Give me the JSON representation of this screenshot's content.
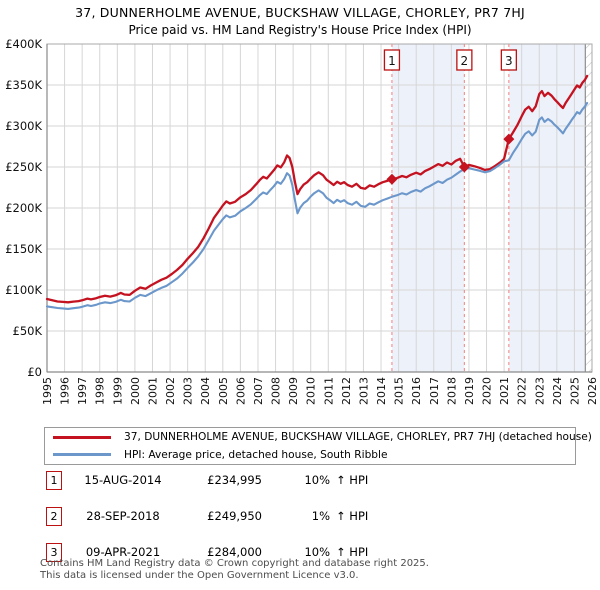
{
  "title": "37, DUNNERHOLME AVENUE, BUCKSHAW VILLAGE, CHORLEY, PR7 7HJ",
  "subtitle": "Price paid vs. HM Land Registry's House Price Index (HPI)",
  "chart_data": {
    "type": "line",
    "title": "37, DUNNERHOLME AVENUE, BUCKSHAW VILLAGE, CHORLEY, PR7 7HJ",
    "subtitle": "Price paid vs. HM Land Registry's House Price Index (HPI)",
    "xlabel": "",
    "ylabel": "",
    "xlim": [
      1995,
      2026
    ],
    "ylim": [
      0,
      400000
    ],
    "grid": true,
    "legend_position": "bottom",
    "x_ticks": [
      "1995",
      "1996",
      "1997",
      "1998",
      "1999",
      "2000",
      "2001",
      "2002",
      "2003",
      "2004",
      "2005",
      "2006",
      "2007",
      "2008",
      "2009",
      "2010",
      "2011",
      "2012",
      "2013",
      "2014",
      "2015",
      "2016",
      "2017",
      "2018",
      "2019",
      "2020",
      "2021",
      "2022",
      "2023",
      "2024",
      "2025",
      "2026"
    ],
    "y_ticks": [
      "£0",
      "£50K",
      "£100K",
      "£150K",
      "£200K",
      "£250K",
      "£300K",
      "£350K",
      "£400K"
    ],
    "y_tick_step": 50000,
    "colors": {
      "property_line": "#c41220",
      "hpi_line": "#6b97cb",
      "marker_dash": "#f58a8a",
      "band_fill": "#edf1fa",
      "grid": "#d6d6d6",
      "border": "#a8a8a8",
      "axis": "#8a8a8a",
      "hatch_stroke": "#c2c2c2",
      "annotation_border": "#bb1111"
    },
    "shaded_bands": [
      [
        2014.62,
        2018.74
      ],
      [
        2021.27,
        2025.62
      ]
    ],
    "hatch_band": [
      2025.62,
      2026
    ],
    "sale_markers": [
      {
        "label": "1",
        "year": 2014.62,
        "price": 234995
      },
      {
        "label": "2",
        "year": 2018.74,
        "price": 249950
      },
      {
        "label": "3",
        "year": 2021.27,
        "price": 284000
      }
    ],
    "series": [
      {
        "name": "37, DUNNERHOLME AVENUE, BUCKSHAW VILLAGE, CHORLEY, PR7 7HJ (detached house)",
        "color": "#c41220",
        "points": [
          [
            1995.0,
            89000
          ],
          [
            1995.3,
            87500
          ],
          [
            1995.6,
            86000
          ],
          [
            1995.9,
            85500
          ],
          [
            1996.2,
            85000
          ],
          [
            1996.5,
            85800
          ],
          [
            1996.8,
            86500
          ],
          [
            1997.0,
            87500
          ],
          [
            1997.3,
            89500
          ],
          [
            1997.5,
            88500
          ],
          [
            1997.8,
            90000
          ],
          [
            1998.0,
            91500
          ],
          [
            1998.3,
            93000
          ],
          [
            1998.6,
            92000
          ],
          [
            1998.9,
            93500
          ],
          [
            1999.2,
            96500
          ],
          [
            1999.4,
            94500
          ],
          [
            1999.7,
            94000
          ],
          [
            2000.0,
            99000
          ],
          [
            2000.3,
            103000
          ],
          [
            2000.6,
            101500
          ],
          [
            2000.9,
            105500
          ],
          [
            2001.2,
            109000
          ],
          [
            2001.5,
            112500
          ],
          [
            2001.8,
            115000
          ],
          [
            2002.1,
            119500
          ],
          [
            2002.4,
            124500
          ],
          [
            2002.7,
            130500
          ],
          [
            2003.0,
            138000
          ],
          [
            2003.3,
            145000
          ],
          [
            2003.6,
            152500
          ],
          [
            2003.9,
            163000
          ],
          [
            2004.2,
            175000
          ],
          [
            2004.5,
            188000
          ],
          [
            2004.8,
            197000
          ],
          [
            2005.0,
            203000
          ],
          [
            2005.2,
            208000
          ],
          [
            2005.4,
            205500
          ],
          [
            2005.7,
            207500
          ],
          [
            2006.0,
            213000
          ],
          [
            2006.3,
            217000
          ],
          [
            2006.6,
            222000
          ],
          [
            2006.9,
            229000
          ],
          [
            2007.1,
            234000
          ],
          [
            2007.3,
            238000
          ],
          [
            2007.5,
            236000
          ],
          [
            2007.7,
            241000
          ],
          [
            2007.9,
            246000
          ],
          [
            2008.1,
            252000
          ],
          [
            2008.3,
            249500
          ],
          [
            2008.5,
            256000
          ],
          [
            2008.65,
            264000
          ],
          [
            2008.8,
            261000
          ],
          [
            2008.95,
            250000
          ],
          [
            2009.1,
            232000
          ],
          [
            2009.25,
            217000
          ],
          [
            2009.4,
            223000
          ],
          [
            2009.6,
            228500
          ],
          [
            2009.8,
            231500
          ],
          [
            2010.0,
            236000
          ],
          [
            2010.2,
            240000
          ],
          [
            2010.45,
            243500
          ],
          [
            2010.7,
            240000
          ],
          [
            2010.9,
            234500
          ],
          [
            2011.1,
            231500
          ],
          [
            2011.3,
            228000
          ],
          [
            2011.5,
            232000
          ],
          [
            2011.7,
            229500
          ],
          [
            2011.9,
            231500
          ],
          [
            2012.1,
            228000
          ],
          [
            2012.35,
            226000
          ],
          [
            2012.6,
            229500
          ],
          [
            2012.85,
            224500
          ],
          [
            2013.1,
            223500
          ],
          [
            2013.35,
            227500
          ],
          [
            2013.6,
            226000
          ],
          [
            2013.85,
            229000
          ],
          [
            2014.1,
            231500
          ],
          [
            2014.35,
            233000
          ],
          [
            2014.62,
            234995
          ],
          [
            2014.9,
            236500
          ],
          [
            2015.2,
            239000
          ],
          [
            2015.45,
            237500
          ],
          [
            2015.7,
            240500
          ],
          [
            2016.0,
            243000
          ],
          [
            2016.25,
            241000
          ],
          [
            2016.5,
            245000
          ],
          [
            2016.75,
            247500
          ],
          [
            2017.0,
            250500
          ],
          [
            2017.25,
            253500
          ],
          [
            2017.5,
            251500
          ],
          [
            2017.75,
            255500
          ],
          [
            2018.0,
            253000
          ],
          [
            2018.25,
            257500
          ],
          [
            2018.5,
            260000
          ],
          [
            2018.74,
            249950
          ],
          [
            2019.0,
            252500
          ],
          [
            2019.3,
            251000
          ],
          [
            2019.6,
            249000
          ],
          [
            2019.9,
            246500
          ],
          [
            2020.2,
            247500
          ],
          [
            2020.5,
            251500
          ],
          [
            2020.8,
            256000
          ],
          [
            2021.0,
            260000
          ],
          [
            2021.27,
            284000
          ],
          [
            2021.5,
            292000
          ],
          [
            2021.75,
            301000
          ],
          [
            2022.0,
            312000
          ],
          [
            2022.2,
            320000
          ],
          [
            2022.4,
            323500
          ],
          [
            2022.6,
            318000
          ],
          [
            2022.8,
            324000
          ],
          [
            2023.0,
            339000
          ],
          [
            2023.15,
            342500
          ],
          [
            2023.3,
            336500
          ],
          [
            2023.5,
            340500
          ],
          [
            2023.7,
            337000
          ],
          [
            2023.85,
            333000
          ],
          [
            2024.05,
            328500
          ],
          [
            2024.2,
            325000
          ],
          [
            2024.35,
            322000
          ],
          [
            2024.5,
            328000
          ],
          [
            2024.7,
            334500
          ],
          [
            2024.85,
            339500
          ],
          [
            2025.0,
            344500
          ],
          [
            2025.15,
            349500
          ],
          [
            2025.3,
            347000
          ],
          [
            2025.45,
            352500
          ],
          [
            2025.6,
            356500
          ],
          [
            2025.72,
            361000
          ]
        ]
      },
      {
        "name": "HPI: Average price, detached house, South Ribble",
        "color": "#6b97cb",
        "points": [
          [
            1995.0,
            80000
          ],
          [
            1995.3,
            79000
          ],
          [
            1995.6,
            78000
          ],
          [
            1995.9,
            77500
          ],
          [
            1996.2,
            77000
          ],
          [
            1996.5,
            77800
          ],
          [
            1996.8,
            78500
          ],
          [
            1997.0,
            79500
          ],
          [
            1997.3,
            81500
          ],
          [
            1997.5,
            80500
          ],
          [
            1997.8,
            82000
          ],
          [
            1998.0,
            83500
          ],
          [
            1998.3,
            85000
          ],
          [
            1998.6,
            84000
          ],
          [
            1998.9,
            85500
          ],
          [
            1999.2,
            88000
          ],
          [
            1999.4,
            86500
          ],
          [
            1999.7,
            86000
          ],
          [
            2000.0,
            90500
          ],
          [
            2000.3,
            94000
          ],
          [
            2000.6,
            92500
          ],
          [
            2000.9,
            96000
          ],
          [
            2001.2,
            99500
          ],
          [
            2001.5,
            102500
          ],
          [
            2001.8,
            105000
          ],
          [
            2002.1,
            109500
          ],
          [
            2002.4,
            114000
          ],
          [
            2002.7,
            120000
          ],
          [
            2003.0,
            127000
          ],
          [
            2003.3,
            133500
          ],
          [
            2003.6,
            141000
          ],
          [
            2003.9,
            150000
          ],
          [
            2004.2,
            161000
          ],
          [
            2004.5,
            172500
          ],
          [
            2004.8,
            181000
          ],
          [
            2005.0,
            186500
          ],
          [
            2005.2,
            191000
          ],
          [
            2005.4,
            188500
          ],
          [
            2005.7,
            190500
          ],
          [
            2006.0,
            196000
          ],
          [
            2006.3,
            200000
          ],
          [
            2006.6,
            204500
          ],
          [
            2006.9,
            211000
          ],
          [
            2007.1,
            215500
          ],
          [
            2007.3,
            219000
          ],
          [
            2007.5,
            217000
          ],
          [
            2007.7,
            222000
          ],
          [
            2007.9,
            226500
          ],
          [
            2008.1,
            232000
          ],
          [
            2008.3,
            229500
          ],
          [
            2008.5,
            235500
          ],
          [
            2008.65,
            242500
          ],
          [
            2008.8,
            239500
          ],
          [
            2008.95,
            228000
          ],
          [
            2009.1,
            210000
          ],
          [
            2009.25,
            193500
          ],
          [
            2009.4,
            200500
          ],
          [
            2009.6,
            206000
          ],
          [
            2009.8,
            209000
          ],
          [
            2010.0,
            214000
          ],
          [
            2010.2,
            218000
          ],
          [
            2010.45,
            221500
          ],
          [
            2010.7,
            218000
          ],
          [
            2010.9,
            212500
          ],
          [
            2011.1,
            209500
          ],
          [
            2011.3,
            206000
          ],
          [
            2011.5,
            210000
          ],
          [
            2011.7,
            207500
          ],
          [
            2011.9,
            209500
          ],
          [
            2012.1,
            206000
          ],
          [
            2012.35,
            204000
          ],
          [
            2012.6,
            207500
          ],
          [
            2012.85,
            202500
          ],
          [
            2013.1,
            201500
          ],
          [
            2013.35,
            205500
          ],
          [
            2013.6,
            204000
          ],
          [
            2013.85,
            207000
          ],
          [
            2014.1,
            209500
          ],
          [
            2014.35,
            211500
          ],
          [
            2014.62,
            213600
          ],
          [
            2014.9,
            215500
          ],
          [
            2015.2,
            218000
          ],
          [
            2015.45,
            216500
          ],
          [
            2015.7,
            219500
          ],
          [
            2016.0,
            222000
          ],
          [
            2016.25,
            220000
          ],
          [
            2016.5,
            224000
          ],
          [
            2016.75,
            226500
          ],
          [
            2017.0,
            229500
          ],
          [
            2017.25,
            232500
          ],
          [
            2017.5,
            230500
          ],
          [
            2017.75,
            234500
          ],
          [
            2018.0,
            237000
          ],
          [
            2018.3,
            241500
          ],
          [
            2018.5,
            244500
          ],
          [
            2018.74,
            247500
          ],
          [
            2019.0,
            248500
          ],
          [
            2019.3,
            247000
          ],
          [
            2019.6,
            245500
          ],
          [
            2019.9,
            243500
          ],
          [
            2020.2,
            245000
          ],
          [
            2020.5,
            249000
          ],
          [
            2020.8,
            253500
          ],
          [
            2021.0,
            257000
          ],
          [
            2021.27,
            258200
          ],
          [
            2021.5,
            267000
          ],
          [
            2021.75,
            275000
          ],
          [
            2022.0,
            284000
          ],
          [
            2022.2,
            290500
          ],
          [
            2022.4,
            293500
          ],
          [
            2022.6,
            288500
          ],
          [
            2022.8,
            293000
          ],
          [
            2023.0,
            307500
          ],
          [
            2023.15,
            310500
          ],
          [
            2023.3,
            305000
          ],
          [
            2023.5,
            308500
          ],
          [
            2023.7,
            305500
          ],
          [
            2023.85,
            302000
          ],
          [
            2024.05,
            298000
          ],
          [
            2024.2,
            294500
          ],
          [
            2024.35,
            291000
          ],
          [
            2024.5,
            296500
          ],
          [
            2024.7,
            302500
          ],
          [
            2024.85,
            307500
          ],
          [
            2025.0,
            312000
          ],
          [
            2025.15,
            317000
          ],
          [
            2025.3,
            315000
          ],
          [
            2025.45,
            320000
          ],
          [
            2025.6,
            324000
          ],
          [
            2025.72,
            328000
          ]
        ]
      }
    ]
  },
  "legend": {
    "entries": [
      {
        "label": "37, DUNNERHOLME AVENUE, BUCKSHAW VILLAGE, CHORLEY, PR7 7HJ (detached house)",
        "color": "#c41220"
      },
      {
        "label": "HPI: Average price, detached house, South Ribble",
        "color": "#6b97cb"
      }
    ]
  },
  "transactions": [
    {
      "num": "1",
      "date": "15-AUG-2014",
      "price": "£234,995",
      "pct": "10%",
      "hpi": "↑ HPI"
    },
    {
      "num": "2",
      "date": "28-SEP-2018",
      "price": "£249,950",
      "pct": "1%",
      "hpi": "↑ HPI"
    },
    {
      "num": "3",
      "date": "09-APR-2021",
      "price": "£284,000",
      "pct": "10%",
      "hpi": "↑ HPI"
    }
  ],
  "footer": {
    "line1": "Contains HM Land Registry data © Crown copyright and database right 2025.",
    "line2": "This data is licensed under the Open Government Licence v3.0."
  }
}
